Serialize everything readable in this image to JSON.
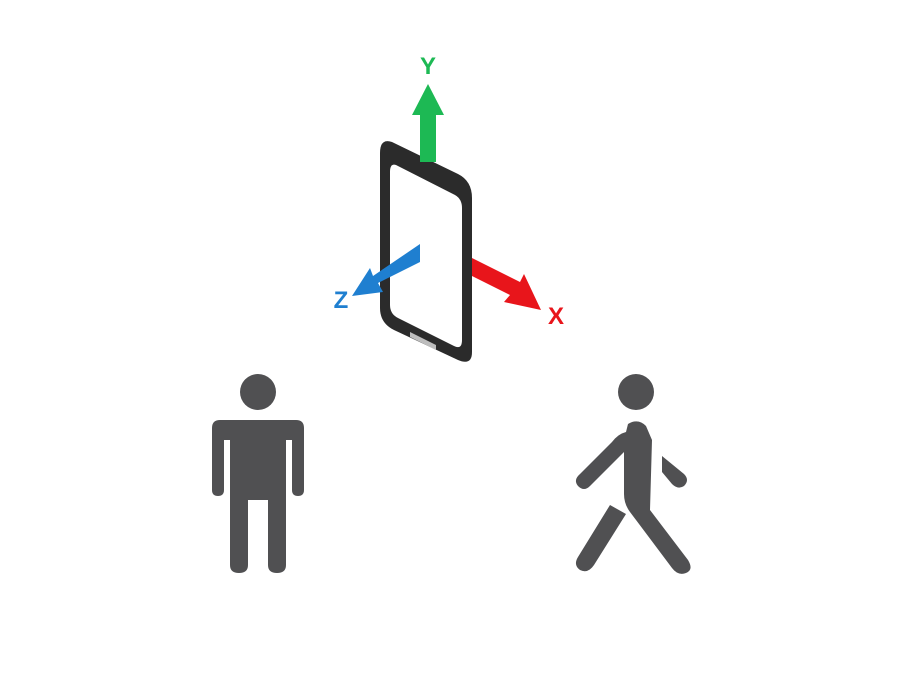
{
  "axes": {
    "y": {
      "label": "Y",
      "color": "#1db954"
    },
    "x": {
      "label": "X",
      "color": "#e8151b"
    },
    "z": {
      "label": "Z",
      "color": "#1f7fd0"
    }
  },
  "phone": {
    "body_color": "#2b2b2b",
    "screen_color": "#ffffff"
  },
  "figures": {
    "color": "#505052",
    "left": {
      "icon": "standing-person-icon"
    },
    "right": {
      "icon": "walking-person-icon"
    }
  }
}
